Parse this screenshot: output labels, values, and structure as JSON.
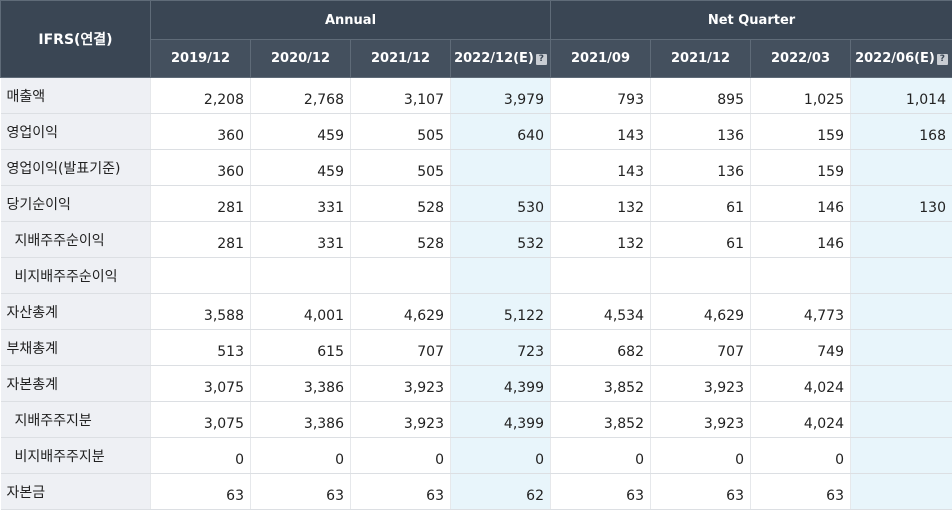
{
  "corner_label": "IFRS(연결)",
  "groups": {
    "annual": "Annual",
    "quarter": "Net Quarter"
  },
  "est_badge": "?",
  "columns": [
    "2019/12",
    "2020/12",
    "2021/12",
    "2022/12(E)",
    "2021/09",
    "2021/12",
    "2022/03",
    "2022/06(E)"
  ],
  "rows": [
    {
      "label": "매출액",
      "cells": [
        "2,208",
        "2,768",
        "3,107",
        "3,979",
        "793",
        "895",
        "1,025",
        "1,014"
      ]
    },
    {
      "label": "영업이익",
      "cells": [
        "360",
        "459",
        "505",
        "640",
        "143",
        "136",
        "159",
        "168"
      ]
    },
    {
      "label": "영업이익(발표기준)",
      "cells": [
        "360",
        "459",
        "505",
        "",
        "143",
        "136",
        "159",
        ""
      ]
    },
    {
      "label": "당기순이익",
      "cells": [
        "281",
        "331",
        "528",
        "530",
        "132",
        "61",
        "146",
        "130"
      ]
    },
    {
      "label": "지배주주순이익",
      "cells": [
        "281",
        "331",
        "528",
        "532",
        "132",
        "61",
        "146",
        ""
      ]
    },
    {
      "label": "비지배주주순이익",
      "cells": [
        "",
        "",
        "",
        "",
        "",
        "",
        "",
        ""
      ]
    },
    {
      "label": "자산총계",
      "cells": [
        "3,588",
        "4,001",
        "4,629",
        "5,122",
        "4,534",
        "4,629",
        "4,773",
        ""
      ]
    },
    {
      "label": "부채총계",
      "cells": [
        "513",
        "615",
        "707",
        "723",
        "682",
        "707",
        "749",
        ""
      ]
    },
    {
      "label": "자본총계",
      "cells": [
        "3,075",
        "3,386",
        "3,923",
        "4,399",
        "3,852",
        "3,923",
        "4,024",
        ""
      ]
    },
    {
      "label": "지배주주지분",
      "cells": [
        "3,075",
        "3,386",
        "3,923",
        "4,399",
        "3,852",
        "3,923",
        "4,024",
        ""
      ]
    },
    {
      "label": "비지배주주지분",
      "cells": [
        "0",
        "0",
        "0",
        "0",
        "0",
        "0",
        "0",
        ""
      ]
    },
    {
      "label": "자본금",
      "cells": [
        "63",
        "63",
        "63",
        "62",
        "63",
        "63",
        "63",
        ""
      ]
    }
  ]
}
